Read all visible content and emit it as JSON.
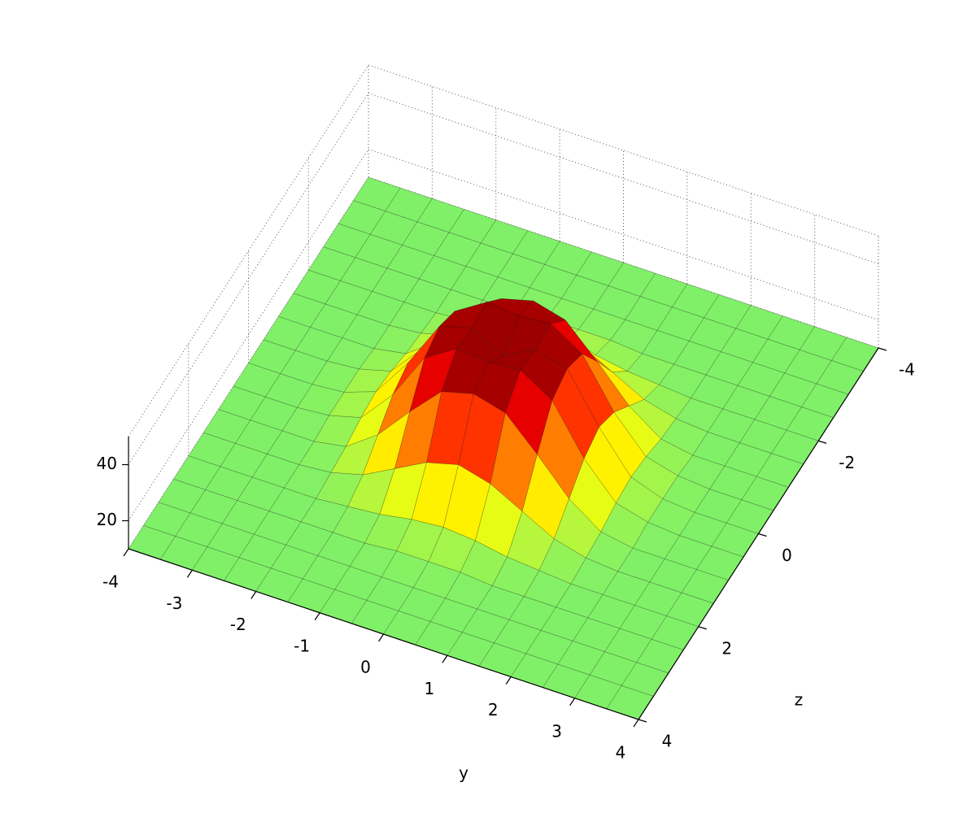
{
  "chart_data": {
    "type": "surface",
    "xlabel": "y",
    "ylabel": "z",
    "x": [
      -4,
      -3.5,
      -3,
      -2.5,
      -2,
      -1.5,
      -1,
      -0.5,
      0,
      0.5,
      1,
      1.5,
      2,
      2.5,
      3,
      3.5,
      4
    ],
    "y": [
      -4,
      -3.5,
      -3,
      -2.5,
      -2,
      -1.5,
      -1,
      -0.5,
      0,
      0.5,
      1,
      1.5,
      2,
      2.5,
      3,
      3.5,
      4
    ],
    "z": [
      [
        10,
        10,
        10,
        10,
        10,
        10,
        10,
        10,
        10,
        10,
        10,
        10,
        10,
        10,
        10,
        10,
        10
      ],
      [
        10,
        10,
        10,
        10,
        10,
        10,
        10,
        10,
        10,
        10,
        10,
        10,
        10,
        10,
        10,
        10,
        10
      ],
      [
        10,
        10,
        10,
        10,
        10,
        10,
        10,
        10,
        10,
        10,
        10,
        10,
        10,
        10,
        10,
        10,
        10
      ],
      [
        10,
        10,
        10,
        10,
        10,
        10,
        10,
        11,
        11,
        11,
        10,
        10,
        10,
        10,
        10,
        10,
        10
      ],
      [
        10,
        10,
        10,
        10,
        10,
        11,
        12,
        14,
        15,
        14,
        12,
        11,
        10,
        10,
        10,
        10,
        10
      ],
      [
        10,
        10,
        10,
        10,
        11,
        14,
        20,
        26,
        29,
        26,
        20,
        14,
        11,
        10,
        10,
        10,
        10
      ],
      [
        10,
        10,
        10,
        10,
        12,
        20,
        32,
        43,
        46,
        43,
        32,
        20,
        12,
        10,
        10,
        10,
        10
      ],
      [
        10,
        10,
        10,
        11,
        14,
        26,
        43,
        50,
        49,
        50,
        43,
        26,
        14,
        11,
        10,
        10,
        10
      ],
      [
        10,
        10,
        10,
        11,
        15,
        29,
        46,
        49,
        43,
        49,
        46,
        29,
        15,
        11,
        10,
        10,
        10
      ],
      [
        10,
        10,
        10,
        11,
        14,
        26,
        43,
        50,
        49,
        50,
        43,
        26,
        14,
        11,
        10,
        10,
        10
      ],
      [
        10,
        10,
        10,
        10,
        12,
        20,
        32,
        43,
        46,
        43,
        32,
        20,
        12,
        10,
        10,
        10,
        10
      ],
      [
        10,
        10,
        10,
        10,
        11,
        14,
        20,
        26,
        29,
        26,
        20,
        14,
        11,
        10,
        10,
        10,
        10
      ],
      [
        10,
        10,
        10,
        10,
        10,
        11,
        12,
        14,
        15,
        14,
        12,
        11,
        10,
        10,
        10,
        10,
        10
      ],
      [
        10,
        10,
        10,
        10,
        10,
        10,
        10,
        11,
        11,
        11,
        10,
        10,
        10,
        10,
        10,
        10,
        10
      ],
      [
        10,
        10,
        10,
        10,
        10,
        10,
        10,
        10,
        10,
        10,
        10,
        10,
        10,
        10,
        10,
        10,
        10
      ],
      [
        10,
        10,
        10,
        10,
        10,
        10,
        10,
        10,
        10,
        10,
        10,
        10,
        10,
        10,
        10,
        10,
        10
      ],
      [
        10,
        10,
        10,
        10,
        10,
        10,
        10,
        10,
        10,
        10,
        10,
        10,
        10,
        10,
        10,
        10,
        10
      ]
    ],
    "xlim": [
      -4,
      4
    ],
    "ylim": [
      -4,
      4
    ],
    "zlim": [
      10,
      50
    ],
    "xticks": [
      -4,
      -3,
      -2,
      -1,
      0,
      1,
      2,
      3,
      4
    ],
    "yticks": [
      -4,
      -2,
      0,
      2,
      4
    ],
    "zticks": [
      20,
      40
    ],
    "grid": true,
    "colormap": [
      "#80f068",
      "#ffff00",
      "#ff8000",
      "#ff0000",
      "#800000"
    ],
    "edgecolor": "#000000"
  }
}
